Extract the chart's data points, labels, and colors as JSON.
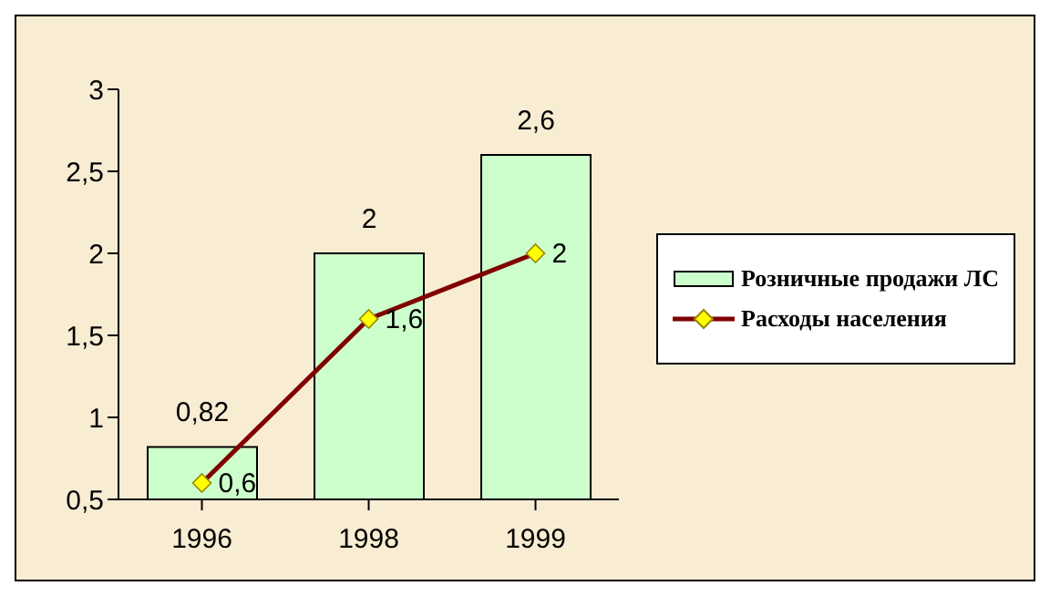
{
  "chart_data": {
    "type": "bar",
    "categories": [
      "1996",
      "1998",
      "1999"
    ],
    "series": [
      {
        "name": "Розничные продажи ЛС",
        "color": "#ccffcc",
        "values": [
          0.82,
          2,
          2.6
        ],
        "value_labels": [
          "0,82",
          "2",
          "2,6"
        ]
      },
      {
        "name": "Расходы населения",
        "type": "line",
        "color": "#800000",
        "values": [
          0.6,
          1.6,
          2
        ],
        "value_labels": [
          "0,6",
          "1,6",
          "2"
        ]
      }
    ],
    "ylim": [
      0.5,
      3
    ],
    "yticks": [
      {
        "value": 0.5,
        "label": "0,5"
      },
      1,
      {
        "value": 1.5,
        "label": "1,5"
      },
      2,
      {
        "value": 2.5,
        "label": "2,5"
      },
      3
    ],
    "grid": false,
    "legend": "right",
    "marker": "diamond",
    "line_style": "solid"
  }
}
